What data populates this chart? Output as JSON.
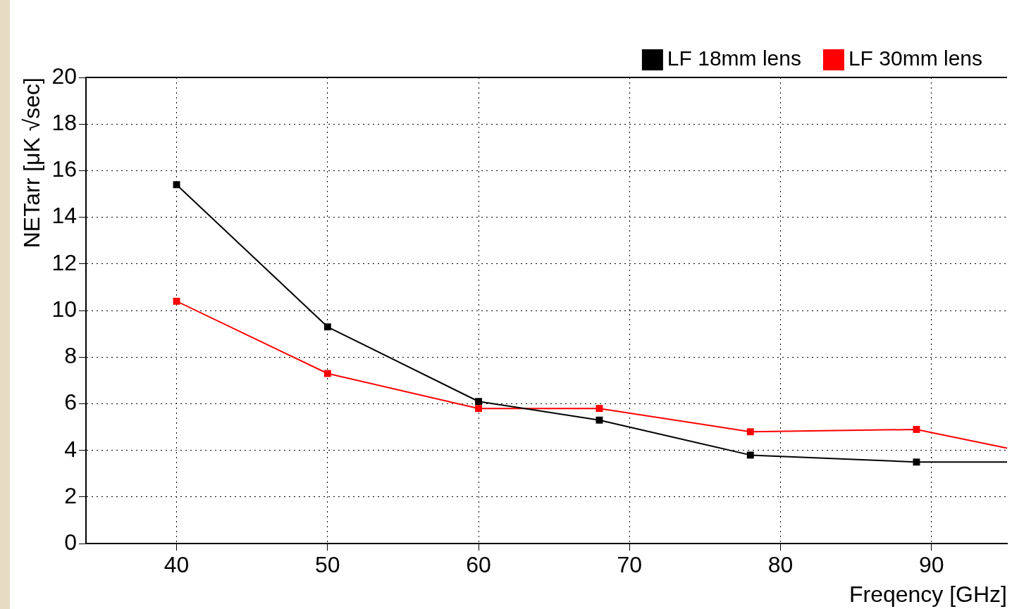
{
  "chart_data": {
    "type": "line",
    "xlabel": "Freqency [GHz]",
    "ylabel": "NETarr [μK √sec]",
    "xlim": [
      34,
      95
    ],
    "xticks": [
      40,
      50,
      60,
      70,
      80,
      90
    ],
    "ylim": [
      0,
      20
    ],
    "yticks": [
      0,
      2,
      4,
      6,
      8,
      10,
      12,
      14,
      16,
      18,
      20
    ],
    "grid": true,
    "legend": "top right",
    "marker": "square",
    "line_style": "solid",
    "series": [
      {
        "name": "LF 18mm lens",
        "color": "#000000",
        "x": [
          40,
          50,
          60,
          68,
          78,
          89,
          95
        ],
        "values": [
          15.4,
          9.3,
          6.1,
          5.3,
          3.8,
          3.5,
          3.5
        ]
      },
      {
        "name": "LF 30mm lens",
        "color": "#ff0000",
        "x": [
          40,
          50,
          60,
          68,
          78,
          89,
          95
        ],
        "values": [
          10.4,
          7.3,
          5.8,
          5.8,
          4.8,
          4.9,
          4.1
        ]
      }
    ]
  }
}
